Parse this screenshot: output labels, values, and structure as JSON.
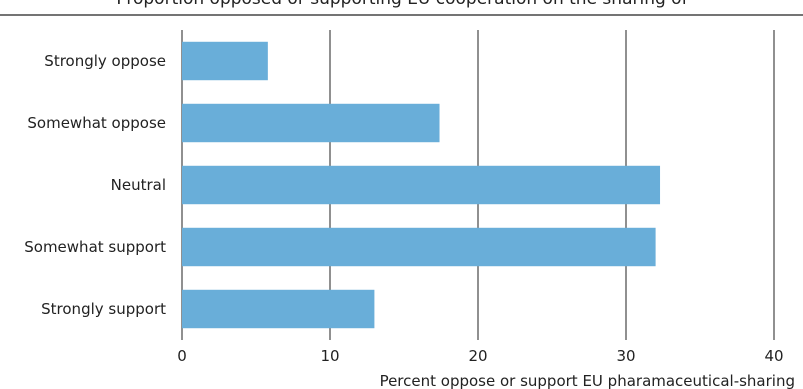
{
  "chart_data": {
    "type": "bar",
    "orientation": "horizontal",
    "title": "Proportion opposed or supporting EU cooperation on the sharing of",
    "xlabel": "Percent oppose or support EU pharamaceutical-sharing",
    "ylabel": "",
    "categories": [
      "Strongly oppose",
      "Somewhat oppose",
      "Neutral",
      "Somewhat support",
      "Strongly support"
    ],
    "values": [
      5.8,
      17.4,
      32.3,
      32.0,
      13.0
    ],
    "xlim": [
      0,
      40
    ],
    "xticks": [
      "0",
      "10",
      "20",
      "30",
      "40"
    ],
    "grid": "vertical",
    "bar_color": "#69aed9",
    "grid_color": "#222222"
  }
}
